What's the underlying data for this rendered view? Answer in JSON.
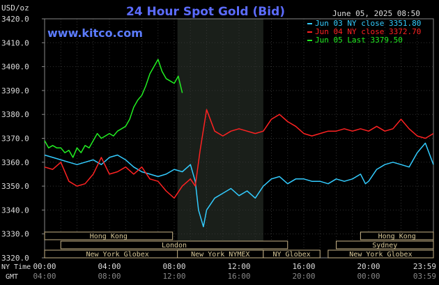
{
  "chart_data": {
    "type": "line",
    "title": "24 Hour Spot Gold (Bid)",
    "site": "www.kitco.com",
    "unit_label": "USD/oz",
    "timestamp": "June 05, 2025 08:50",
    "ylim": [
      3320.0,
      3420.0
    ],
    "y_ticks": [
      "3420.0",
      "3410.0",
      "3400.0",
      "3390.0",
      "3380.0",
      "3370.0",
      "3360.0",
      "3350.0",
      "3340.0",
      "3330.0",
      "3320.0"
    ],
    "x_row_labels": {
      "ny": "NY Time",
      "gmt": "GMT"
    },
    "x_ticks_ny": [
      "00:00",
      "04:00",
      "08:00",
      "12:00",
      "16:00",
      "20:00",
      "23:59"
    ],
    "x_ticks_gmt": [
      "04:00",
      "08:00",
      "12:00",
      "16:00",
      "20:00",
      "00:00",
      "03:59"
    ],
    "legend": [
      {
        "label": "Jun 03 NY close 3351.80",
        "color": "#33ccff"
      },
      {
        "label": "Jun 04 NY close 3372.70",
        "color": "#ff2222"
      },
      {
        "label": "Jun 05 Last 3379.50",
        "color": "#22ee22"
      }
    ],
    "sessions": [
      {
        "label": "Hong Kong",
        "start": 0.0,
        "end": 7.9
      },
      {
        "label": "London",
        "start": 1.0,
        "end": 15.0
      },
      {
        "label": "New York Globex",
        "start": 0.0,
        "end": 9.0
      },
      {
        "label": "New York NYMEX",
        "start": 8.2,
        "end": 13.5
      },
      {
        "label": "NY Globex",
        "start": 13.5,
        "end": 17.0
      },
      {
        "label": "Hong Kong",
        "start": 19.5,
        "end": 24.0
      },
      {
        "label": "Sydney",
        "start": 18.0,
        "end": 24.0
      },
      {
        "label": "New York Globex",
        "start": 17.5,
        "end": 24.0
      }
    ],
    "series": [
      {
        "name": "Jun 03 NY close 3351.80",
        "color": "#33ccff",
        "x": [
          0,
          0.5,
          1,
          1.5,
          2,
          2.5,
          3,
          3.5,
          4,
          4.5,
          5,
          5.5,
          6,
          6.5,
          7,
          7.5,
          8,
          8.5,
          9,
          9.3,
          9.5,
          9.8,
          10,
          10.5,
          11,
          11.5,
          12,
          12.5,
          13,
          13.5,
          14,
          14.5,
          15,
          15.5,
          16,
          16.5,
          17,
          17.5,
          18,
          18.5,
          19,
          19.5,
          19.8,
          20,
          20.5,
          21,
          21.5,
          22,
          22.5,
          23,
          23.5,
          24
        ],
        "y": [
          3363,
          3362,
          3361,
          3360,
          3359,
          3360,
          3361,
          3359,
          3362,
          3363,
          3361,
          3358,
          3356,
          3355,
          3354,
          3355,
          3357,
          3356,
          3359,
          3352,
          3340,
          3333,
          3340,
          3345,
          3347,
          3349,
          3346,
          3348,
          3345,
          3350,
          3353,
          3354,
          3351,
          3353,
          3353,
          3352,
          3352,
          3351,
          3353,
          3352,
          3353,
          3355,
          3351,
          3352,
          3357,
          3359,
          3360,
          3359,
          3358,
          3364,
          3368,
          3359
        ]
      },
      {
        "name": "Jun 04 NY close 3372.70",
        "color": "#ff2222",
        "x": [
          0,
          0.5,
          1,
          1.5,
          2,
          2.5,
          3,
          3.5,
          4,
          4.5,
          5,
          5.5,
          6,
          6.5,
          7,
          7.5,
          8,
          8.5,
          9,
          9.3,
          9.6,
          10,
          10.5,
          11,
          11.5,
          12,
          12.5,
          13,
          13.5,
          14,
          14.5,
          15,
          15.5,
          16,
          16.5,
          17,
          17.5,
          18,
          18.5,
          19,
          19.5,
          20,
          20.5,
          21,
          21.5,
          22,
          22.5,
          23,
          23.5,
          24
        ],
        "y": [
          3358,
          3357,
          3360,
          3352,
          3350,
          3351,
          3355,
          3362,
          3355,
          3356,
          3358,
          3355,
          3358,
          3353,
          3352,
          3348,
          3345,
          3350,
          3353,
          3350,
          3365,
          3382,
          3373,
          3371,
          3373,
          3374,
          3373,
          3372,
          3373,
          3378,
          3380,
          3377,
          3375,
          3372,
          3371,
          3372,
          3373,
          3373,
          3374,
          3373,
          3374,
          3373,
          3375,
          3373,
          3374,
          3378,
          3374,
          3371,
          3370,
          3372
        ]
      },
      {
        "name": "Jun 05 Last 3379.50",
        "color": "#22ee22",
        "x": [
          0,
          0.25,
          0.5,
          0.75,
          1,
          1.25,
          1.5,
          1.75,
          2,
          2.25,
          2.5,
          2.75,
          3,
          3.25,
          3.5,
          3.75,
          4,
          4.25,
          4.5,
          4.75,
          5,
          5.25,
          5.5,
          5.75,
          6,
          6.25,
          6.5,
          6.75,
          7,
          7.25,
          7.5,
          7.75,
          8,
          8.25,
          8.5
        ],
        "y": [
          3369,
          3366,
          3367,
          3366,
          3366,
          3364,
          3365,
          3362,
          3366,
          3364,
          3367,
          3366,
          3369,
          3372,
          3370,
          3371,
          3372,
          3371,
          3373,
          3374,
          3375,
          3378,
          3383,
          3386,
          3388,
          3392,
          3397,
          3400,
          3403,
          3398,
          3395,
          3394,
          3393,
          3396,
          3389
        ]
      }
    ]
  }
}
